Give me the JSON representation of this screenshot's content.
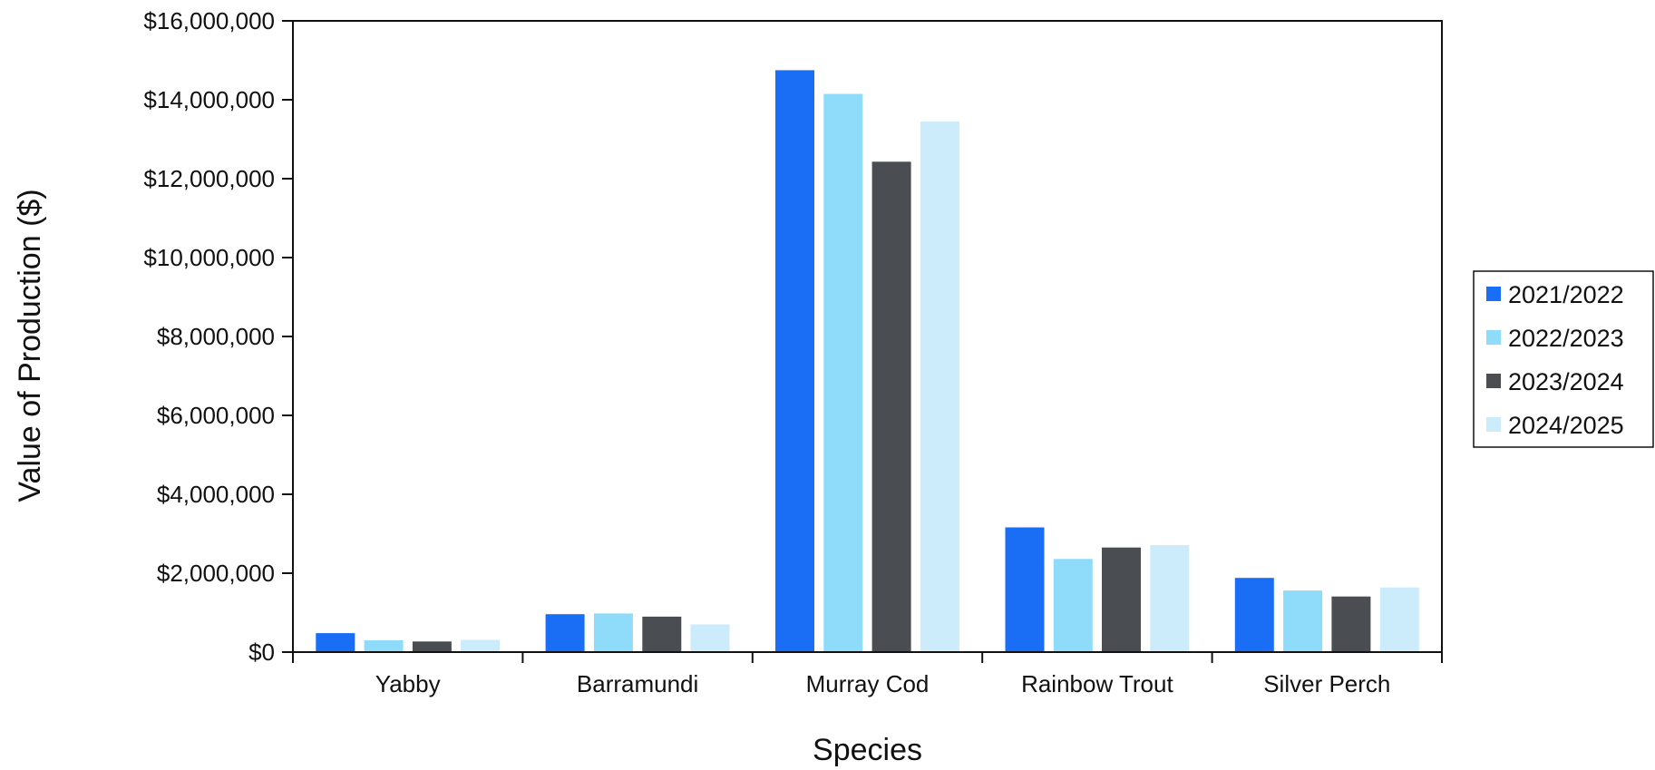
{
  "chart_data": {
    "type": "bar",
    "title": "",
    "xlabel": "Species",
    "ylabel": "Value of Production ($)",
    "categories": [
      "Yabby",
      "Barramundi",
      "Murray Cod",
      "Rainbow Trout",
      "Silver Perch"
    ],
    "series": [
      {
        "name": "2021/2022",
        "color": "#1A6EF5",
        "values": [
          480000,
          960000,
          14750000,
          3160000,
          1880000
        ]
      },
      {
        "name": "2022/2023",
        "color": "#8EDCFA",
        "values": [
          300000,
          980000,
          14150000,
          2360000,
          1560000
        ]
      },
      {
        "name": "2023/2024",
        "color": "#4A4E52",
        "values": [
          270000,
          900000,
          12430000,
          2650000,
          1410000
        ]
      },
      {
        "name": "2024/2025",
        "color": "#CCEBFB",
        "values": [
          310000,
          700000,
          13450000,
          2710000,
          1640000
        ]
      }
    ],
    "ylim": [
      0,
      16000000
    ],
    "yticks": [
      0,
      2000000,
      4000000,
      6000000,
      8000000,
      10000000,
      12000000,
      14000000,
      16000000
    ],
    "ytick_labels": [
      "$0",
      "$2,000,000",
      "$4,000,000",
      "$6,000,000",
      "$8,000,000",
      "$10,000,000",
      "$12,000,000",
      "$14,000,000",
      "$16,000,000"
    ],
    "grid": false,
    "legend_position": "right"
  }
}
